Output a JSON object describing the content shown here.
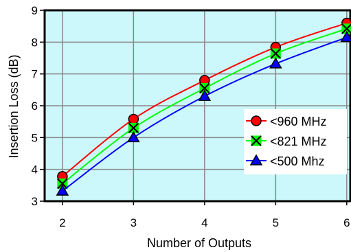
{
  "chart_data": {
    "type": "line",
    "xlabel": "Number of Outputs",
    "ylabel": "Insertion Loss (dB)",
    "x": [
      2,
      3,
      4,
      5,
      6
    ],
    "xlim": [
      1.75,
      6.05
    ],
    "ylim": [
      3,
      9
    ],
    "xticks": [
      "2",
      "3",
      "4",
      "5",
      "6"
    ],
    "yticks": [
      "3",
      "4",
      "5",
      "6",
      "7",
      "8",
      "9"
    ],
    "grid": true,
    "legend_position": "center-right",
    "background_color": "#ccf7fb",
    "series": [
      {
        "name": "<960 MHz",
        "marker": "circle",
        "line_color": "#ff0000",
        "marker_color": "#ff0000",
        "values": [
          3.78,
          5.58,
          6.8,
          7.84,
          8.6
        ]
      },
      {
        "name": "<821 MHz",
        "marker": "x-box",
        "line_color": "#00ff00",
        "marker_color": "#00ff00",
        "values": [
          3.55,
          5.3,
          6.55,
          7.64,
          8.42
        ]
      },
      {
        "name": "<500 Mhz",
        "marker": "triangle",
        "line_color": "#0000ff",
        "marker_color": "#0000ff",
        "values": [
          3.32,
          5.0,
          6.3,
          7.32,
          8.15
        ]
      }
    ]
  }
}
